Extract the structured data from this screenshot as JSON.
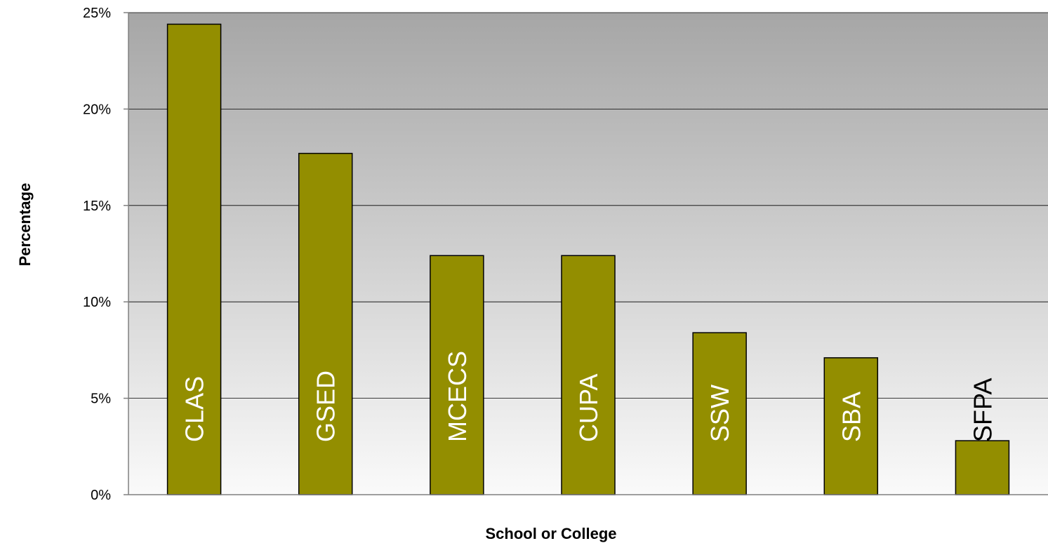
{
  "chart_data": {
    "type": "bar",
    "title": "",
    "xlabel": "School or College",
    "ylabel": "Percentage",
    "categories": [
      "CLAS",
      "GSED",
      "MCECS",
      "CUPA",
      "SSW",
      "SBA",
      "SFPA"
    ],
    "values": [
      24.4,
      17.7,
      12.4,
      12.4,
      8.4,
      7.1,
      2.8
    ],
    "ylim": [
      0,
      25
    ],
    "yticks": [
      0,
      5,
      10,
      15,
      20,
      25
    ],
    "ytick_labels": [
      "0%",
      "5%",
      "10%",
      "15%",
      "20%",
      "25%"
    ],
    "grid": true,
    "legend": "none",
    "label_position": "inside-bar-rotated",
    "colors": {
      "bar": "#938e00",
      "bar_border": "#000000",
      "plot_gradient_top": "#a6a6a6",
      "plot_gradient_bottom": "#fafafa",
      "label_inside": "#ffffff",
      "label_outside": "#000000"
    }
  }
}
